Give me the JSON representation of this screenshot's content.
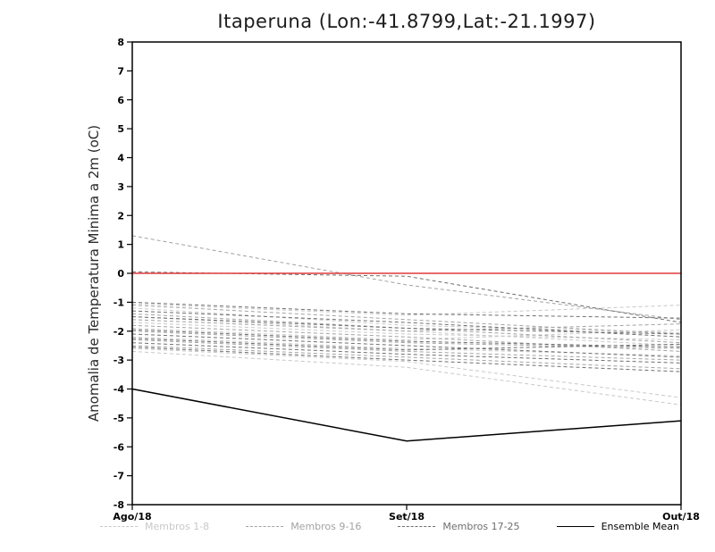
{
  "page": {
    "background": "#ffffff"
  },
  "chart_data": {
    "type": "line",
    "title": "Itaperuna (Lon:-41.8799,Lat:-21.1997)",
    "ylabel": "Anomalia de Temperatura Minima a 2m (oC)",
    "x_categories": [
      "Ago/18",
      "Set/18",
      "Out/18"
    ],
    "ylim": [
      -8,
      8
    ],
    "ytick_step": 1,
    "grid": false,
    "zero_line": {
      "value": 0,
      "color": "#e03a3a"
    },
    "groups": [
      {
        "name": "Membros 1-8",
        "color": "#c8c8c8",
        "style": "dashed",
        "series": [
          {
            "values": [
              -1.05,
              -1.45,
              -1.1
            ]
          },
          {
            "values": [
              -1.5,
              -2.0,
              -2.5
            ]
          },
          {
            "values": [
              -2.6,
              -3.05,
              -4.3
            ]
          },
          {
            "values": [
              -2.7,
              -3.25,
              -4.55
            ]
          },
          {
            "values": [
              -1.9,
              -2.3,
              -1.95
            ]
          },
          {
            "values": [
              -2.2,
              -2.6,
              -2.85
            ]
          },
          {
            "values": [
              -1.2,
              -1.8,
              -2.05
            ]
          },
          {
            "values": [
              -1.7,
              -2.1,
              -2.3
            ]
          }
        ]
      },
      {
        "name": "Membros 9-16",
        "color": "#a2a2a2",
        "style": "dashed",
        "series": [
          {
            "values": [
              1.3,
              -0.4,
              -1.6
            ]
          },
          {
            "values": [
              -1.1,
              -1.6,
              -2.1
            ]
          },
          {
            "values": [
              -1.4,
              -1.9,
              -2.4
            ]
          },
          {
            "values": [
              -2.0,
              -2.4,
              -2.6
            ]
          },
          {
            "values": [
              -2.3,
              -2.7,
              -3.0
            ]
          },
          {
            "values": [
              -1.6,
              -2.0,
              -1.75
            ]
          },
          {
            "values": [
              -2.5,
              -2.9,
              -3.3
            ]
          },
          {
            "values": [
              -1.8,
              -2.2,
              -2.7
            ]
          }
        ]
      },
      {
        "name": "Membros 17-25",
        "color": "#6e6e6e",
        "style": "dashed",
        "series": [
          {
            "values": [
              0.05,
              -0.1,
              -1.7
            ]
          },
          {
            "values": [
              -1.3,
              -1.7,
              -2.2
            ]
          },
          {
            "values": [
              -2.1,
              -2.5,
              -2.9
            ]
          },
          {
            "values": [
              -1.5,
              -1.9,
              -2.1
            ]
          },
          {
            "values": [
              -2.4,
              -2.8,
              -3.1
            ]
          },
          {
            "values": [
              -1.0,
              -1.4,
              -1.55
            ]
          },
          {
            "values": [
              -2.55,
              -3.0,
              -3.4
            ]
          },
          {
            "values": [
              -1.95,
              -2.35,
              -2.55
            ]
          },
          {
            "values": [
              -2.25,
              -2.65,
              -2.45
            ]
          }
        ]
      }
    ],
    "mean": {
      "name": "Ensemble Mean",
      "color": "#000000",
      "style": "solid",
      "values": [
        -4.0,
        -5.8,
        -5.1
      ]
    },
    "legend_position": "bottom"
  }
}
